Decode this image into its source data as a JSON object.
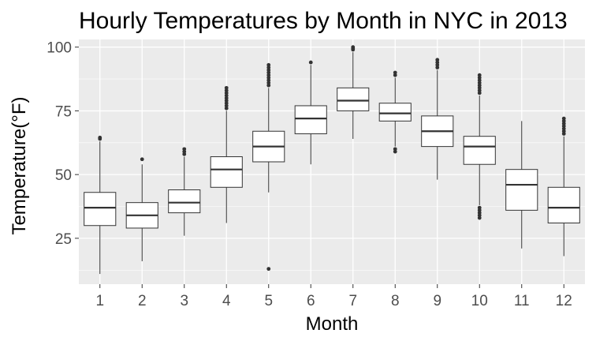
{
  "chart_data": {
    "type": "boxplot",
    "title": "Hourly Temperatures by Month in NYC in 2013",
    "xlabel": "Month",
    "ylabel": "Temperature(°F)",
    "ylim": [
      7,
      103
    ],
    "yticks": [
      25,
      50,
      75,
      100
    ],
    "grid": true,
    "categories": [
      "1",
      "2",
      "3",
      "4",
      "5",
      "6",
      "7",
      "8",
      "9",
      "10",
      "11",
      "12"
    ],
    "boxes": [
      {
        "month": "1",
        "low": 11,
        "q1": 30,
        "median": 37,
        "q3": 43,
        "high": 63,
        "outliers": [
          64,
          64.5
        ]
      },
      {
        "month": "2",
        "low": 16,
        "q1": 29,
        "median": 34,
        "q3": 39,
        "high": 54,
        "outliers": [
          56
        ]
      },
      {
        "month": "3",
        "low": 26,
        "q1": 35,
        "median": 39,
        "q3": 44,
        "high": 57,
        "outliers": [
          58,
          59,
          60
        ]
      },
      {
        "month": "4",
        "low": 31,
        "q1": 45,
        "median": 52,
        "q3": 57,
        "high": 75,
        "outliers": [
          76,
          77,
          78,
          79,
          80,
          81,
          82,
          83,
          84
        ]
      },
      {
        "month": "5",
        "low": 43,
        "q1": 55,
        "median": 61,
        "q3": 67,
        "high": 84,
        "outliers": [
          13,
          85,
          86,
          87,
          88,
          89,
          90,
          91,
          92,
          93
        ]
      },
      {
        "month": "6",
        "low": 54,
        "q1": 66,
        "median": 72,
        "q3": 77,
        "high": 93,
        "outliers": [
          94
        ]
      },
      {
        "month": "7",
        "low": 64,
        "q1": 75,
        "median": 79,
        "q3": 84,
        "high": 98,
        "outliers": [
          99,
          99.5,
          100
        ]
      },
      {
        "month": "8",
        "low": 61,
        "q1": 71,
        "median": 74,
        "q3": 78,
        "high": 88,
        "outliers": [
          59,
          60,
          89,
          90
        ]
      },
      {
        "month": "9",
        "low": 48,
        "q1": 61,
        "median": 67,
        "q3": 73,
        "high": 91,
        "outliers": [
          92,
          93,
          94,
          95
        ]
      },
      {
        "month": "10",
        "low": 38,
        "q1": 54,
        "median": 61,
        "q3": 65,
        "high": 81,
        "outliers": [
          33,
          34,
          35,
          36,
          37,
          82,
          83,
          84,
          85,
          86,
          87,
          88,
          89
        ]
      },
      {
        "month": "11",
        "low": 21,
        "q1": 36,
        "median": 46,
        "q3": 52,
        "high": 71,
        "outliers": []
      },
      {
        "month": "12",
        "low": 18,
        "q1": 31,
        "median": 37,
        "q3": 45,
        "high": 65,
        "outliers": [
          66,
          67,
          68,
          69,
          70,
          71,
          72
        ]
      }
    ],
    "colors": {
      "panel": "#ebebeb",
      "grid": "#ffffff",
      "box_fill": "#ffffff",
      "box_line": "#333333",
      "outlier": "#333333",
      "tick_text": "#4d4d4d"
    }
  }
}
